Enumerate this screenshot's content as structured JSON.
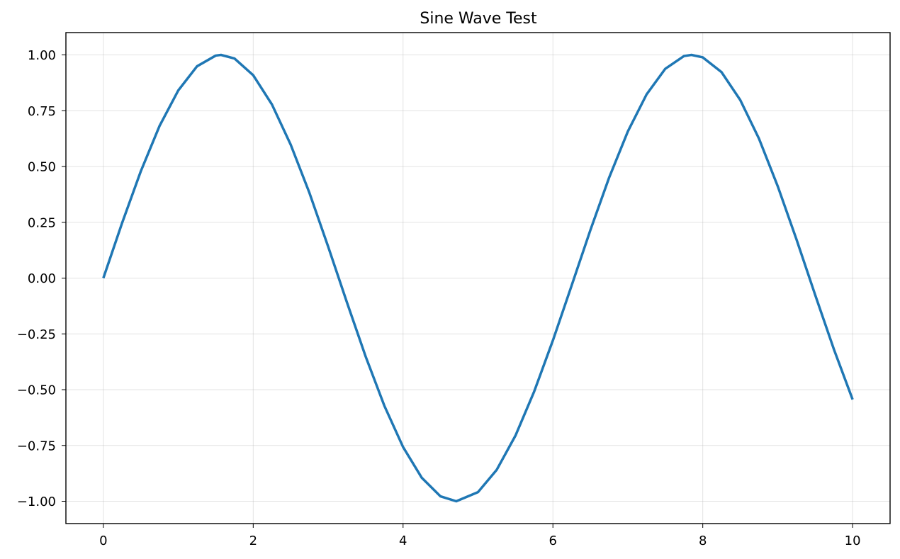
{
  "chart_data": {
    "type": "line",
    "title": "Sine Wave Test",
    "xlabel": "",
    "ylabel": "",
    "xlim": [
      -0.5,
      10.5
    ],
    "ylim": [
      -1.1,
      1.1
    ],
    "x_ticks": [
      0,
      2,
      4,
      6,
      8,
      10
    ],
    "x_tick_labels": [
      "0",
      "2",
      "4",
      "6",
      "8",
      "10"
    ],
    "y_ticks": [
      1.0,
      0.75,
      0.5,
      0.25,
      0.0,
      -0.25,
      -0.5,
      -0.75,
      -1.0
    ],
    "y_tick_labels": [
      "1.00",
      "0.75",
      "0.50",
      "0.25",
      "0.00",
      "−0.25",
      "−0.50",
      "−0.75",
      "−1.00"
    ],
    "grid": true,
    "series": [
      {
        "color": "#1f77b4",
        "x": [
          0,
          0.25,
          0.5,
          0.75,
          1,
          1.25,
          1.5,
          1.57,
          1.75,
          2,
          2.25,
          2.5,
          2.75,
          3,
          3.25,
          3.5,
          3.75,
          4,
          4.25,
          4.5,
          4.71,
          5,
          5.25,
          5.5,
          5.75,
          6,
          6.25,
          6.5,
          6.75,
          7,
          7.25,
          7.5,
          7.75,
          7.85,
          8,
          8.25,
          8.5,
          8.75,
          9,
          9.25,
          9.5,
          9.75,
          10
        ],
        "y": [
          0,
          0.247,
          0.479,
          0.682,
          0.841,
          0.949,
          0.997,
          1.0,
          0.984,
          0.909,
          0.778,
          0.598,
          0.382,
          0.141,
          -0.108,
          -0.351,
          -0.572,
          -0.757,
          -0.895,
          -0.978,
          -1.0,
          -0.959,
          -0.859,
          -0.706,
          -0.508,
          -0.279,
          -0.033,
          0.215,
          0.45,
          0.657,
          0.823,
          0.938,
          0.995,
          1.0,
          0.989,
          0.923,
          0.798,
          0.625,
          0.412,
          0.174,
          -0.075,
          -0.319,
          -0.544
        ]
      }
    ]
  }
}
